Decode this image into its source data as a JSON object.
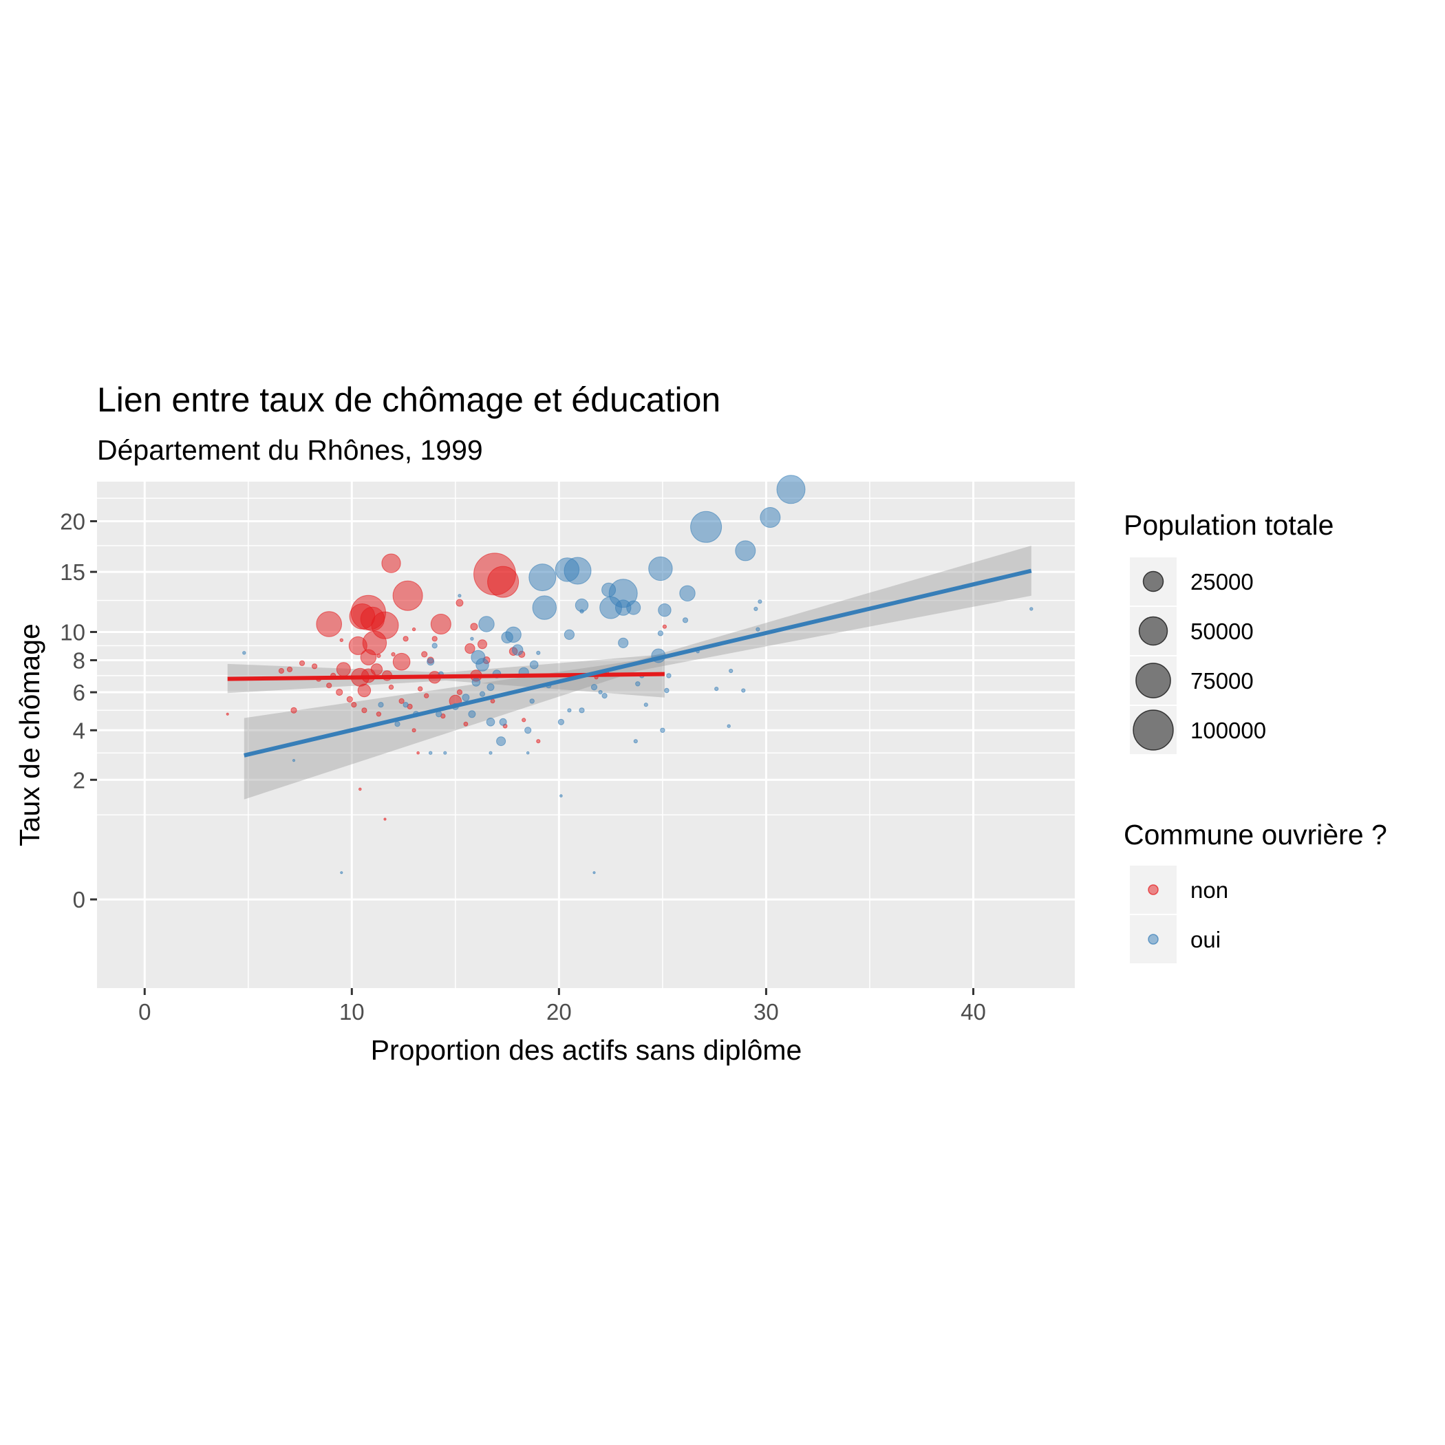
{
  "chart_data": {
    "type": "scatter",
    "title": "Lien entre taux de chômage et éducation",
    "subtitle": "Département du Rhônes, 1999",
    "xlabel": "Proportion des actifs sans diplôme",
    "ylabel": "Taux de chômage",
    "x_ticks": [
      0,
      10,
      20,
      30,
      40
    ],
    "y_ticks": [
      0,
      2,
      4,
      6,
      8,
      10,
      15,
      20
    ],
    "y_scale": "sqrt",
    "xlim": [
      -2.3,
      44.9
    ],
    "ylim": [
      -1.1,
      24.4
    ],
    "grid": true,
    "size_legend": {
      "title": "Population totale",
      "breaks": [
        25000,
        50000,
        75000,
        100000
      ],
      "labels": [
        "25000",
        "50000",
        "75000",
        "100000"
      ]
    },
    "color_legend": {
      "title": "Commune ouvrière ?",
      "entries": [
        {
          "label": "non",
          "color": "#E41A1C"
        },
        {
          "label": "oui",
          "color": "#377EB8"
        }
      ]
    },
    "series": [
      {
        "name": "non",
        "color": "#E41A1C",
        "points": [
          [
            16.9,
            14.8,
            110000
          ],
          [
            17.3,
            14.1,
            60000
          ],
          [
            12.7,
            12.9,
            55000
          ],
          [
            11.9,
            15.8,
            22000
          ],
          [
            10.8,
            11.5,
            75000
          ],
          [
            10.5,
            11.2,
            40000
          ],
          [
            11.0,
            11.0,
            35000
          ],
          [
            11.6,
            10.5,
            45000
          ],
          [
            8.9,
            10.6,
            40000
          ],
          [
            14.3,
            10.6,
            25000
          ],
          [
            10.3,
            9.0,
            20000
          ],
          [
            11.1,
            9.2,
            35000
          ],
          [
            10.8,
            8.2,
            15000
          ],
          [
            12.4,
            7.9,
            18000
          ],
          [
            9.6,
            7.4,
            12000
          ],
          [
            10.4,
            6.9,
            20000
          ],
          [
            10.8,
            7.0,
            12000
          ],
          [
            11.2,
            7.4,
            8000
          ],
          [
            10.6,
            6.1,
            10000
          ],
          [
            11.7,
            7.0,
            6000
          ],
          [
            14.0,
            6.9,
            9000
          ],
          [
            15.0,
            5.5,
            9000
          ],
          [
            16.3,
            9.1,
            5000
          ],
          [
            16.0,
            7.0,
            8000
          ],
          [
            15.7,
            8.8,
            6000
          ],
          [
            15.2,
            12.3,
            3000
          ],
          [
            15.9,
            10.4,
            3000
          ],
          [
            16.5,
            8.0,
            3000
          ],
          [
            17.8,
            8.6,
            4000
          ],
          [
            18.2,
            8.4,
            2500
          ],
          [
            7.2,
            5.0,
            2000
          ],
          [
            7.0,
            7.4,
            1500
          ],
          [
            7.6,
            7.8,
            1500
          ],
          [
            8.2,
            7.6,
            1500
          ],
          [
            6.6,
            7.3,
            1500
          ],
          [
            8.4,
            6.8,
            1500
          ],
          [
            8.9,
            6.4,
            1500
          ],
          [
            9.4,
            6.0,
            2500
          ],
          [
            9.9,
            5.6,
            2000
          ],
          [
            10.1,
            5.3,
            1500
          ],
          [
            10.6,
            5.0,
            1500
          ],
          [
            11.3,
            4.8,
            1200
          ],
          [
            12.4,
            5.5,
            1500
          ],
          [
            12.8,
            5.2,
            1500
          ],
          [
            13.3,
            6.2,
            1200
          ],
          [
            13.6,
            5.8,
            1200
          ],
          [
            14.4,
            4.7,
            1200
          ],
          [
            15.5,
            4.3,
            1000
          ],
          [
            16.8,
            5.5,
            1000
          ],
          [
            17.4,
            4.2,
            1000
          ],
          [
            18.3,
            4.5,
            800
          ],
          [
            19.0,
            3.5,
            800
          ],
          [
            12.6,
            9.5,
            1500
          ],
          [
            13.5,
            8.4,
            2000
          ],
          [
            14.0,
            9.5,
            1500
          ],
          [
            13.0,
            10.2,
            600
          ],
          [
            11.3,
            8.3,
            800
          ],
          [
            12.0,
            8.4,
            800
          ],
          [
            9.5,
            9.4,
            600
          ],
          [
            13.2,
            3.0,
            400
          ],
          [
            10.4,
            1.7,
            400
          ],
          [
            11.6,
            0.9,
            300
          ],
          [
            4.0,
            4.8,
            300
          ],
          [
            21.8,
            6.9,
            800
          ],
          [
            22.3,
            7.2,
            1000
          ],
          [
            25.1,
            10.4,
            800
          ],
          [
            9.1,
            7.0,
            1500
          ],
          [
            11.9,
            6.3,
            1200
          ],
          [
            15.2,
            6.0,
            1500
          ],
          [
            13.8,
            8.0,
            2500
          ],
          [
            13.0,
            4.0,
            800
          ]
        ]
      },
      {
        "name": "oui",
        "color": "#377EB8",
        "points": [
          [
            31.2,
            23.5,
            50000
          ],
          [
            30.2,
            20.4,
            25000
          ],
          [
            27.1,
            19.4,
            60000
          ],
          [
            29.0,
            17.0,
            25000
          ],
          [
            24.9,
            15.3,
            35000
          ],
          [
            20.4,
            15.2,
            35000
          ],
          [
            20.9,
            15.1,
            45000
          ],
          [
            19.2,
            14.5,
            45000
          ],
          [
            23.1,
            13.1,
            50000
          ],
          [
            22.5,
            11.9,
            30000
          ],
          [
            19.3,
            11.9,
            35000
          ],
          [
            23.1,
            11.9,
            15000
          ],
          [
            23.6,
            11.9,
            12000
          ],
          [
            26.2,
            13.1,
            15000
          ],
          [
            22.4,
            13.4,
            12000
          ],
          [
            21.1,
            12.1,
            10000
          ],
          [
            25.1,
            11.7,
            10000
          ],
          [
            16.5,
            10.6,
            15000
          ],
          [
            17.8,
            9.8,
            15000
          ],
          [
            17.5,
            9.6,
            8000
          ],
          [
            20.5,
            9.8,
            6000
          ],
          [
            23.1,
            9.2,
            6000
          ],
          [
            24.8,
            8.3,
            12000
          ],
          [
            18.0,
            8.7,
            7000
          ],
          [
            16.1,
            8.2,
            12000
          ],
          [
            16.3,
            7.7,
            10000
          ],
          [
            18.8,
            7.7,
            4000
          ],
          [
            18.3,
            7.2,
            6000
          ],
          [
            17.0,
            7.1,
            4000
          ],
          [
            16.0,
            6.6,
            4000
          ],
          [
            15.5,
            5.7,
            3000
          ],
          [
            16.7,
            6.3,
            3000
          ],
          [
            15.8,
            4.8,
            3000
          ],
          [
            16.7,
            4.4,
            4000
          ],
          [
            17.3,
            4.4,
            3000
          ],
          [
            17.2,
            3.5,
            5000
          ],
          [
            18.5,
            4.0,
            2500
          ],
          [
            20.1,
            4.4,
            2000
          ],
          [
            21.1,
            5.0,
            1500
          ],
          [
            21.7,
            6.3,
            2000
          ],
          [
            22.2,
            5.8,
            1500
          ],
          [
            19.5,
            6.4,
            1500
          ],
          [
            15.0,
            5.2,
            2500
          ],
          [
            14.2,
            4.8,
            2000
          ],
          [
            13.1,
            4.8,
            2000
          ],
          [
            12.6,
            5.3,
            1500
          ],
          [
            11.4,
            5.3,
            1500
          ],
          [
            13.8,
            7.9,
            3000
          ],
          [
            14.3,
            7.1,
            1500
          ],
          [
            24.0,
            7.0,
            1200
          ],
          [
            25.3,
            7.0,
            1200
          ],
          [
            25.2,
            6.1,
            1200
          ],
          [
            24.2,
            5.3,
            800
          ],
          [
            22.0,
            6.0,
            800
          ],
          [
            23.8,
            6.5,
            1200
          ],
          [
            25.0,
            4.0,
            1200
          ],
          [
            23.7,
            3.5,
            800
          ],
          [
            28.9,
            6.1,
            800
          ],
          [
            28.3,
            7.3,
            800
          ],
          [
            27.6,
            6.2,
            800
          ],
          [
            28.2,
            4.2,
            600
          ],
          [
            29.6,
            10.2,
            800
          ],
          [
            29.7,
            12.4,
            800
          ],
          [
            26.1,
            10.9,
            1500
          ],
          [
            26.7,
            8.6,
            600
          ],
          [
            24.9,
            9.9,
            1500
          ],
          [
            29.5,
            11.8,
            800
          ],
          [
            42.8,
            11.8,
            600
          ],
          [
            15.2,
            12.9,
            500
          ],
          [
            21.1,
            11.6,
            800
          ],
          [
            4.8,
            8.5,
            600
          ],
          [
            7.2,
            2.7,
            300
          ],
          [
            9.5,
            0.1,
            300
          ],
          [
            21.7,
            0.1,
            300
          ],
          [
            20.1,
            1.5,
            400
          ],
          [
            13.8,
            3.0,
            600
          ],
          [
            14.5,
            3.0,
            500
          ],
          [
            16.7,
            3.0,
            500
          ],
          [
            18.5,
            3.0,
            400
          ],
          [
            15.8,
            9.5,
            600
          ],
          [
            14.0,
            9.0,
            1500
          ],
          [
            19.0,
            8.5,
            800
          ],
          [
            18.7,
            5.5,
            1200
          ],
          [
            20.5,
            5.0,
            800
          ],
          [
            12.2,
            4.3,
            1500
          ],
          [
            16.3,
            5.9,
            1500
          ]
        ]
      }
    ],
    "fits": [
      {
        "name": "non",
        "color": "#E41A1C",
        "x_start": 4.0,
        "x_end": 25.1,
        "y_start": 6.8,
        "y_end": 7.1,
        "ci_lower_start": 5.95,
        "ci_upper_start": 7.75,
        "ci_lower_end": 5.7,
        "ci_upper_end": 8.4,
        "ci_lower_mid": 6.7,
        "ci_upper_mid": 7.2
      },
      {
        "name": "oui",
        "color": "#377EB8",
        "x_start": 4.8,
        "x_end": 42.8,
        "y_start": 2.9,
        "y_end": 15.1,
        "ci_lower_start": 1.4,
        "ci_upper_start": 4.6,
        "ci_lower_end": 12.9,
        "ci_upper_end": 17.5,
        "ci_lower_mid": 7.3,
        "ci_upper_mid": 8.0
      }
    ]
  }
}
